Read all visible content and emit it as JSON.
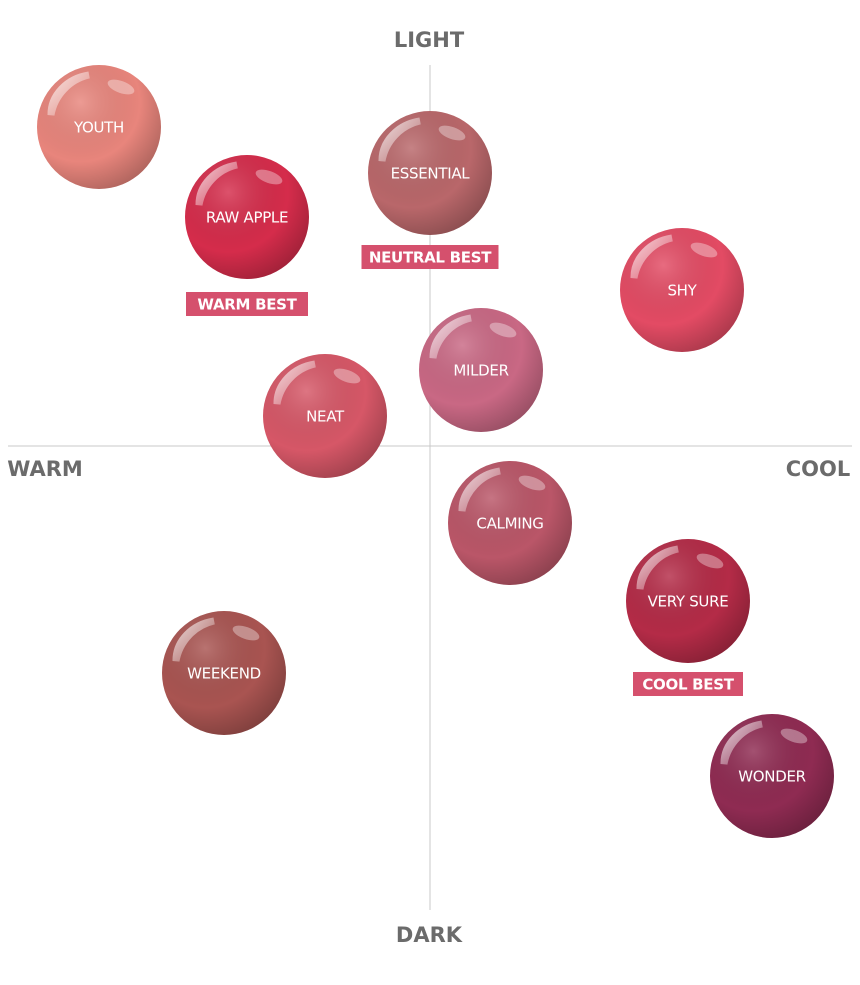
{
  "axes": {
    "top": "LIGHT",
    "bottom": "DARK",
    "left": "WARM",
    "right": "COOL"
  },
  "nodes": [
    {
      "label": "YOUTH"
    },
    {
      "label": "RAW APPLE",
      "badge": "WARM BEST"
    },
    {
      "label": "ESSENTIAL",
      "badge": "NEUTRAL BEST"
    },
    {
      "label": "SHY"
    },
    {
      "label": "MILDER"
    },
    {
      "label": "NEAT"
    },
    {
      "label": "CALMING"
    },
    {
      "label": "VERY SURE",
      "badge": "COOL BEST"
    },
    {
      "label": "WEEKEND"
    },
    {
      "label": "WONDER"
    }
  ]
}
